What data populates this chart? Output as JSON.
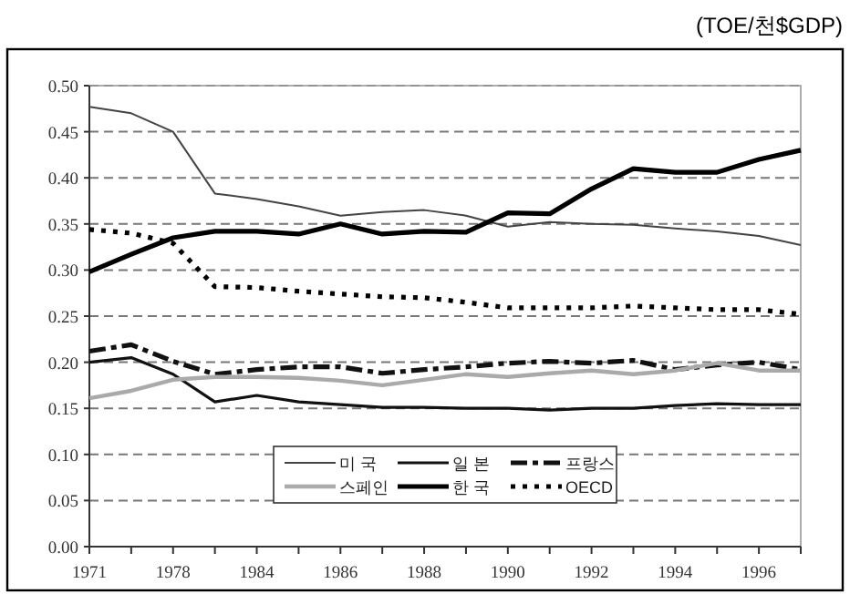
{
  "chart_data": {
    "type": "line",
    "annotations": [
      "(TOE/천$GDP)"
    ],
    "categories": [
      "1971",
      null,
      "1978",
      null,
      "1984",
      null,
      "1986",
      null,
      "1988",
      null,
      "1990",
      null,
      "1992",
      null,
      "1994",
      null,
      "1996",
      null
    ],
    "ylim": [
      0,
      0.5
    ],
    "yticks": [
      {
        "value": 0,
        "label": "0.00"
      },
      {
        "value": 0.05,
        "label": "0.05"
      },
      {
        "value": 0.1,
        "label": "0.10"
      },
      {
        "value": 0.15,
        "label": "0.15"
      },
      {
        "value": 0.2,
        "label": "0.20"
      },
      {
        "value": 0.25,
        "label": "0.25"
      },
      {
        "value": 0.3,
        "label": "0.30"
      },
      {
        "value": 0.35,
        "label": "0.35"
      },
      {
        "value": 0.4,
        "label": "0.40"
      },
      {
        "value": 0.45,
        "label": "0.45"
      },
      {
        "value": 0.5,
        "label": "0.50"
      }
    ],
    "grid": "y",
    "legend": "bottom",
    "marker": "none",
    "series": [
      {
        "name": "미 국",
        "color": "#444444",
        "line_style": "solid",
        "values": [
          0.477,
          0.47,
          0.45,
          0.383,
          0.377,
          0.369,
          0.359,
          0.363,
          0.365,
          0.359,
          0.347,
          0.352,
          0.35,
          0.349,
          0.345,
          0.342,
          0.337,
          0.327
        ]
      },
      {
        "name": "일 본",
        "color": "#111111",
        "line_style": "solid",
        "values": [
          0.2,
          0.205,
          0.187,
          0.157,
          0.164,
          0.157,
          0.154,
          0.151,
          0.151,
          0.15,
          0.15,
          0.148,
          0.15,
          0.15,
          0.153,
          0.155,
          0.154,
          0.154
        ]
      },
      {
        "name": "프랑스",
        "color": "#111111",
        "line_style": "dashed",
        "values": [
          0.212,
          0.219,
          0.201,
          0.187,
          0.192,
          0.195,
          0.195,
          0.188,
          0.192,
          0.195,
          0.199,
          0.201,
          0.199,
          0.202,
          0.192,
          0.197,
          0.2,
          0.192
        ]
      },
      {
        "name": "스페인",
        "color": "#aaaaaa",
        "line_style": "solid",
        "values": [
          0.161,
          0.169,
          0.181,
          0.184,
          0.184,
          0.183,
          0.18,
          0.175,
          0.181,
          0.187,
          0.184,
          0.188,
          0.191,
          0.187,
          0.191,
          0.199,
          0.191,
          0.191
        ]
      },
      {
        "name": "한 국",
        "color": "#000000",
        "line_style": "solid",
        "values": [
          0.298,
          0.317,
          0.335,
          0.342,
          0.342,
          0.339,
          0.35,
          0.339,
          0.342,
          0.341,
          0.362,
          0.361,
          0.388,
          0.41,
          0.406,
          0.406,
          0.42,
          0.43
        ]
      },
      {
        "name": "OECD",
        "color": "#000000",
        "line_style": "dotted",
        "values": [
          0.344,
          0.34,
          0.329,
          0.282,
          0.281,
          0.277,
          0.274,
          0.271,
          0.27,
          0.265,
          0.259,
          0.259,
          0.259,
          0.261,
          0.259,
          0.257,
          0.257,
          0.252
        ]
      }
    ]
  }
}
